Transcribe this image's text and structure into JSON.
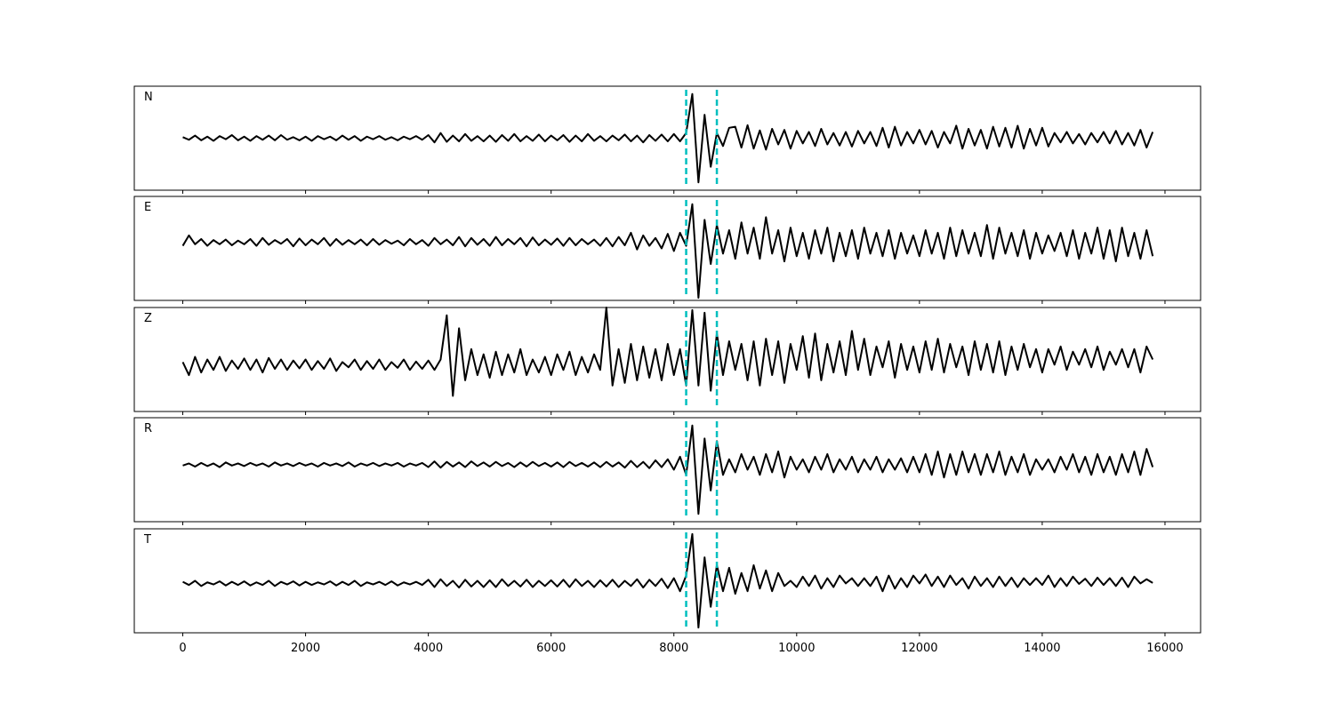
{
  "chart_data": {
    "type": "line",
    "color": "#000000",
    "vline_color": "#00bfbf",
    "xlim": [
      -790,
      16580
    ],
    "ylim": [
      -1,
      1
    ],
    "xticks": [
      0,
      2000,
      4000,
      6000,
      8000,
      10000,
      12000,
      14000,
      16000
    ],
    "vlines": [
      8200,
      8700
    ],
    "x": [
      0,
      100,
      200,
      300,
      400,
      500,
      600,
      700,
      800,
      900,
      1000,
      1100,
      1200,
      1300,
      1400,
      1500,
      1600,
      1700,
      1800,
      1900,
      2000,
      2100,
      2200,
      2300,
      2400,
      2500,
      2600,
      2700,
      2800,
      2900,
      3000,
      3100,
      3200,
      3300,
      3400,
      3500,
      3600,
      3700,
      3800,
      3900,
      4000,
      4100,
      4200,
      4300,
      4400,
      4500,
      4600,
      4700,
      4800,
      4900,
      5000,
      5100,
      5200,
      5300,
      5400,
      5500,
      5600,
      5700,
      5800,
      5900,
      6000,
      6100,
      6200,
      6300,
      6400,
      6500,
      6600,
      6700,
      6800,
      6900,
      7000,
      7100,
      7200,
      7300,
      7400,
      7500,
      7600,
      7700,
      7800,
      7900,
      8000,
      8100,
      8200,
      8300,
      8400,
      8500,
      8600,
      8700,
      8800,
      8900,
      9000,
      9100,
      9200,
      9300,
      9400,
      9500,
      9600,
      9700,
      9800,
      9900,
      10000,
      10100,
      10200,
      10300,
      10400,
      10500,
      10600,
      10700,
      10800,
      10900,
      11000,
      11100,
      11200,
      11300,
      11400,
      11500,
      11600,
      11700,
      11800,
      11900,
      12000,
      12100,
      12200,
      12300,
      12400,
      12500,
      12600,
      12700,
      12800,
      12900,
      13000,
      13100,
      13200,
      13300,
      13400,
      13500,
      13600,
      13700,
      13800,
      13900,
      14000,
      14100,
      14200,
      14300,
      14400,
      14500,
      14600,
      14700,
      14800,
      14900,
      15000,
      15100,
      15200,
      15300,
      15400,
      15500,
      15600,
      15700,
      15800
    ],
    "panels": [
      {
        "name": "N",
        "values": [
          0.02,
          -0.03,
          0.05,
          -0.04,
          0.03,
          -0.05,
          0.04,
          -0.02,
          0.06,
          -0.04,
          0.03,
          -0.05,
          0.04,
          -0.03,
          0.05,
          -0.04,
          0.06,
          -0.03,
          0.02,
          -0.04,
          0.03,
          -0.05,
          0.04,
          -0.02,
          0.03,
          -0.04,
          0.05,
          -0.03,
          0.04,
          -0.05,
          0.03,
          -0.02,
          0.04,
          -0.03,
          0.02,
          -0.04,
          0.03,
          -0.02,
          0.04,
          -0.03,
          0.06,
          -0.08,
          0.1,
          -0.07,
          0.05,
          -0.06,
          0.08,
          -0.05,
          0.04,
          -0.06,
          0.05,
          -0.07,
          0.06,
          -0.05,
          0.08,
          -0.06,
          0.04,
          -0.05,
          0.07,
          -0.06,
          0.05,
          -0.04,
          0.06,
          -0.07,
          0.05,
          -0.06,
          0.08,
          -0.05,
          0.04,
          -0.06,
          0.05,
          -0.04,
          0.07,
          -0.06,
          0.05,
          -0.08,
          0.06,
          -0.05,
          0.07,
          -0.06,
          0.08,
          -0.06,
          0.1,
          0.85,
          -0.85,
          0.45,
          -0.55,
          0.1,
          -0.15,
          0.2,
          0.22,
          -0.18,
          0.25,
          -0.2,
          0.15,
          -0.22,
          0.18,
          -0.12,
          0.16,
          -0.2,
          0.14,
          -0.1,
          0.12,
          -0.15,
          0.18,
          -0.12,
          0.1,
          -0.14,
          0.12,
          -0.16,
          0.14,
          -0.1,
          0.12,
          -0.15,
          0.2,
          -0.18,
          0.22,
          -0.14,
          0.12,
          -0.1,
          0.16,
          -0.12,
          0.14,
          -0.18,
          0.12,
          -0.1,
          0.24,
          -0.2,
          0.18,
          -0.14,
          0.16,
          -0.2,
          0.22,
          -0.16,
          0.2,
          -0.18,
          0.24,
          -0.2,
          0.18,
          -0.14,
          0.2,
          -0.16,
          0.1,
          -0.08,
          0.12,
          -0.1,
          0.08,
          -0.12,
          0.1,
          -0.08,
          0.12,
          -0.1,
          0.14,
          -0.12,
          0.1,
          -0.14,
          0.16,
          -0.18,
          0.12
        ]
      },
      {
        "name": "E",
        "values": [
          0.05,
          0.25,
          0.08,
          0.18,
          0.05,
          0.16,
          0.08,
          0.17,
          0.06,
          0.15,
          0.08,
          0.18,
          0.05,
          0.2,
          0.07,
          0.16,
          0.09,
          0.18,
          0.04,
          0.19,
          0.06,
          0.17,
          0.08,
          0.2,
          0.05,
          0.18,
          0.07,
          0.16,
          0.08,
          0.17,
          0.06,
          0.18,
          0.07,
          0.16,
          0.09,
          0.15,
          0.06,
          0.18,
          0.08,
          0.16,
          0.05,
          0.2,
          0.08,
          0.17,
          0.06,
          0.22,
          0.04,
          0.2,
          0.07,
          0.18,
          0.05,
          0.22,
          0.06,
          0.18,
          0.08,
          0.2,
          0.04,
          0.21,
          0.06,
          0.17,
          0.07,
          0.19,
          0.05,
          0.2,
          0.06,
          0.18,
          0.08,
          0.17,
          0.05,
          0.2,
          0.04,
          0.22,
          0.06,
          0.3,
          -0.02,
          0.25,
          0.05,
          0.2,
          0.0,
          0.28,
          -0.05,
          0.3,
          0.05,
          0.85,
          -0.95,
          0.55,
          -0.3,
          0.45,
          -0.1,
          0.35,
          -0.2,
          0.5,
          -0.1,
          0.4,
          -0.2,
          0.6,
          -0.1,
          0.35,
          -0.25,
          0.4,
          -0.15,
          0.3,
          -0.2,
          0.35,
          -0.1,
          0.4,
          -0.25,
          0.3,
          -0.15,
          0.35,
          -0.2,
          0.4,
          -0.1,
          0.3,
          -0.15,
          0.35,
          -0.2,
          0.3,
          -0.1,
          0.25,
          -0.15,
          0.35,
          -0.1,
          0.3,
          -0.2,
          0.4,
          -0.15,
          0.35,
          -0.1,
          0.3,
          -0.15,
          0.45,
          -0.2,
          0.4,
          -0.1,
          0.3,
          -0.15,
          0.35,
          -0.2,
          0.3,
          -0.1,
          0.25,
          -0.05,
          0.3,
          -0.15,
          0.35,
          -0.2,
          0.3,
          -0.1,
          0.4,
          -0.2,
          0.35,
          -0.25,
          0.4,
          -0.15,
          0.3,
          -0.2,
          0.35,
          -0.15
        ]
      },
      {
        "name": "Z",
        "values": [
          -0.05,
          -0.3,
          0.05,
          -0.25,
          0.0,
          -0.2,
          0.05,
          -0.22,
          -0.02,
          -0.18,
          0.02,
          -0.2,
          0.0,
          -0.25,
          0.03,
          -0.18,
          0.0,
          -0.2,
          -0.02,
          -0.17,
          0.0,
          -0.2,
          -0.03,
          -0.18,
          0.02,
          -0.22,
          -0.05,
          -0.15,
          0.0,
          -0.2,
          -0.03,
          -0.18,
          0.0,
          -0.2,
          -0.05,
          -0.16,
          0.0,
          -0.2,
          -0.04,
          -0.18,
          -0.02,
          -0.2,
          0.0,
          0.85,
          -0.7,
          0.6,
          -0.4,
          0.2,
          -0.3,
          0.1,
          -0.35,
          0.15,
          -0.3,
          0.1,
          -0.25,
          0.2,
          -0.3,
          0.0,
          -0.25,
          0.05,
          -0.3,
          0.1,
          -0.2,
          0.15,
          -0.3,
          0.05,
          -0.25,
          0.1,
          -0.2,
          1.0,
          -0.5,
          0.2,
          -0.45,
          0.3,
          -0.4,
          0.25,
          -0.35,
          0.2,
          -0.4,
          0.3,
          -0.3,
          0.2,
          -0.5,
          0.95,
          -0.5,
          0.9,
          -0.6,
          0.5,
          -0.3,
          0.35,
          -0.2,
          0.3,
          -0.4,
          0.35,
          -0.5,
          0.4,
          -0.3,
          0.35,
          -0.45,
          0.3,
          -0.2,
          0.45,
          -0.35,
          0.5,
          -0.4,
          0.3,
          -0.25,
          0.35,
          -0.3,
          0.55,
          -0.2,
          0.4,
          -0.3,
          0.25,
          -0.15,
          0.35,
          -0.35,
          0.3,
          -0.2,
          0.25,
          -0.25,
          0.35,
          -0.2,
          0.4,
          -0.25,
          0.3,
          -0.15,
          0.25,
          -0.3,
          0.35,
          -0.2,
          0.3,
          -0.25,
          0.35,
          -0.3,
          0.25,
          -0.2,
          0.3,
          -0.15,
          0.2,
          -0.25,
          0.2,
          -0.1,
          0.25,
          -0.2,
          0.15,
          -0.1,
          0.2,
          -0.15,
          0.25,
          -0.2,
          0.15,
          -0.1,
          0.2,
          -0.15,
          0.2,
          -0.25,
          0.25,
          0.0
        ]
      },
      {
        "name": "R",
        "values": [
          0.08,
          0.12,
          0.06,
          0.13,
          0.07,
          0.12,
          0.05,
          0.14,
          0.08,
          0.12,
          0.07,
          0.13,
          0.08,
          0.12,
          0.06,
          0.14,
          0.08,
          0.12,
          0.07,
          0.13,
          0.08,
          0.12,
          0.06,
          0.13,
          0.08,
          0.12,
          0.07,
          0.14,
          0.06,
          0.12,
          0.08,
          0.13,
          0.07,
          0.12,
          0.08,
          0.13,
          0.06,
          0.12,
          0.08,
          0.13,
          0.05,
          0.16,
          0.04,
          0.15,
          0.06,
          0.14,
          0.05,
          0.16,
          0.07,
          0.14,
          0.06,
          0.15,
          0.07,
          0.13,
          0.05,
          0.14,
          0.06,
          0.15,
          0.07,
          0.13,
          0.06,
          0.14,
          0.05,
          0.15,
          0.07,
          0.13,
          0.06,
          0.14,
          0.05,
          0.15,
          0.06,
          0.14,
          0.04,
          0.17,
          0.05,
          0.15,
          0.03,
          0.18,
          0.05,
          0.2,
          0.0,
          0.25,
          -0.1,
          0.85,
          -0.85,
          0.6,
          -0.4,
          0.55,
          -0.1,
          0.2,
          -0.05,
          0.3,
          0.0,
          0.25,
          -0.1,
          0.3,
          -0.05,
          0.35,
          -0.15,
          0.25,
          0.0,
          0.2,
          -0.05,
          0.25,
          0.0,
          0.3,
          -0.05,
          0.2,
          0.0,
          0.25,
          -0.05,
          0.2,
          0.0,
          0.25,
          -0.05,
          0.2,
          0.0,
          0.22,
          -0.05,
          0.25,
          -0.05,
          0.3,
          -0.1,
          0.35,
          -0.15,
          0.3,
          -0.1,
          0.35,
          -0.05,
          0.3,
          -0.1,
          0.3,
          -0.05,
          0.35,
          -0.1,
          0.25,
          -0.05,
          0.3,
          -0.1,
          0.2,
          0.0,
          0.2,
          -0.05,
          0.25,
          0.0,
          0.3,
          -0.05,
          0.25,
          -0.1,
          0.3,
          -0.05,
          0.25,
          -0.1,
          0.3,
          -0.05,
          0.35,
          -0.1,
          0.4,
          0.05
        ]
      },
      {
        "name": "T",
        "values": [
          -0.02,
          -0.08,
          0.0,
          -0.1,
          -0.03,
          -0.07,
          -0.01,
          -0.09,
          -0.02,
          -0.08,
          -0.01,
          -0.09,
          -0.03,
          -0.08,
          0.0,
          -0.1,
          -0.02,
          -0.07,
          -0.01,
          -0.09,
          -0.02,
          -0.08,
          -0.03,
          -0.07,
          -0.01,
          -0.09,
          -0.02,
          -0.08,
          0.0,
          -0.1,
          -0.03,
          -0.07,
          -0.02,
          -0.08,
          -0.01,
          -0.09,
          -0.03,
          -0.07,
          -0.02,
          -0.08,
          0.02,
          -0.12,
          0.03,
          -0.1,
          0.0,
          -0.13,
          0.02,
          -0.11,
          0.0,
          -0.12,
          0.01,
          -0.12,
          0.03,
          -0.1,
          0.0,
          -0.11,
          0.02,
          -0.12,
          0.0,
          -0.1,
          0.01,
          -0.11,
          0.02,
          -0.12,
          0.03,
          -0.1,
          0.0,
          -0.12,
          0.01,
          -0.11,
          0.02,
          -0.12,
          0.0,
          -0.1,
          0.03,
          -0.13,
          0.02,
          -0.1,
          0.04,
          -0.14,
          0.05,
          -0.2,
          0.1,
          0.9,
          -0.9,
          0.45,
          -0.5,
          0.3,
          -0.2,
          0.25,
          -0.25,
          0.15,
          -0.2,
          0.3,
          -0.15,
          0.2,
          -0.2,
          0.15,
          -0.1,
          0.0,
          -0.12,
          0.08,
          -0.1,
          0.1,
          -0.15,
          0.05,
          -0.12,
          0.1,
          -0.05,
          0.05,
          -0.1,
          0.05,
          -0.1,
          0.08,
          -0.2,
          0.1,
          -0.15,
          0.05,
          -0.12,
          0.1,
          -0.05,
          0.12,
          -0.1,
          0.08,
          -0.12,
          0.1,
          -0.08,
          0.05,
          -0.15,
          0.08,
          -0.1,
          0.05,
          -0.12,
          0.08,
          -0.1,
          0.06,
          -0.12,
          0.05,
          -0.08,
          0.05,
          -0.08,
          0.1,
          -0.12,
          0.05,
          -0.1,
          0.08,
          -0.06,
          0.04,
          -0.1,
          0.06,
          -0.08,
          0.05,
          -0.1,
          0.06,
          -0.12,
          0.08,
          -0.05,
          0.03,
          -0.04
        ]
      }
    ]
  }
}
